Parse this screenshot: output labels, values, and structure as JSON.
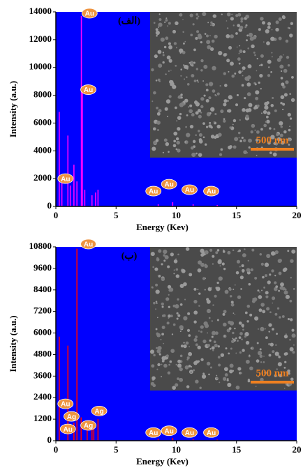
{
  "chart_data": [
    {
      "type": "stem",
      "panel_label": "(الف)",
      "xlabel": "Energy (Kev)",
      "ylabel": "Intensity (a.u.)",
      "background": "#0000ff",
      "color": "#ff00ff",
      "xlim": [
        0,
        20
      ],
      "xticks": [
        0,
        5,
        10,
        15,
        20
      ],
      "ylim": [
        0,
        14000
      ],
      "yticks": [
        0,
        2000,
        4000,
        6000,
        8000,
        10000,
        12000,
        14000
      ],
      "x": [
        0.28,
        0.5,
        1.0,
        1.2,
        1.5,
        1.75,
        2.12,
        2.2,
        2.4,
        3.0,
        3.3,
        3.5,
        8.5,
        9.7,
        11.4,
        13.4
      ],
      "values": [
        6800,
        2000,
        5100,
        1500,
        3000,
        1800,
        13700,
        8200,
        1200,
        800,
        1000,
        1200,
        150,
        300,
        150,
        100
      ],
      "annotations": [
        {
          "text": "Au",
          "x": 2.8,
          "y": 13700
        },
        {
          "text": "Au",
          "x": 2.7,
          "y": 8200
        },
        {
          "text": "Au",
          "x": 0.8,
          "y": 1800
        },
        {
          "text": "Au",
          "x": 8.1,
          "y": 900
        },
        {
          "text": "Au",
          "x": 9.4,
          "y": 1400
        },
        {
          "text": "Au",
          "x": 11.1,
          "y": 1000
        },
        {
          "text": "Au",
          "x": 12.9,
          "y": 900
        }
      ],
      "inset_scale": "500 nm"
    },
    {
      "type": "stem",
      "panel_label": "(ب)",
      "xlabel": "Energy (Kev)",
      "ylabel": "Intensity (a.u.)",
      "background": "#0000ff",
      "color": "#ff0000",
      "xlim": [
        0,
        20
      ],
      "xticks": [
        0,
        5,
        10,
        15,
        20
      ],
      "ylim": [
        0,
        10800
      ],
      "yticks": [
        0,
        1200,
        2400,
        3600,
        4800,
        6000,
        7200,
        8400,
        9600,
        10800
      ],
      "x": [
        0.28,
        1.0,
        1.5,
        1.75,
        2.1,
        2.6,
        3.0,
        3.15,
        3.5,
        8.5,
        9.7,
        11.4,
        13.4
      ],
      "values": [
        5800,
        5300,
        1000,
        10700,
        1300,
        800,
        900,
        1100,
        1200,
        100,
        150,
        80,
        60
      ],
      "annotations": [
        {
          "text": "Au",
          "x": 2.7,
          "y": 10800
        },
        {
          "text": "Au",
          "x": 0.8,
          "y": 1900
        },
        {
          "text": "Ag",
          "x": 1.3,
          "y": 1200
        },
        {
          "text": "Au",
          "x": 1.0,
          "y": 500
        },
        {
          "text": "Ag",
          "x": 2.7,
          "y": 700
        },
        {
          "text": "Ag",
          "x": 3.6,
          "y": 1500
        },
        {
          "text": "Au",
          "x": 8.1,
          "y": 300
        },
        {
          "text": "Au",
          "x": 9.4,
          "y": 400
        },
        {
          "text": "Au",
          "x": 11.1,
          "y": 300
        },
        {
          "text": "Au",
          "x": 12.9,
          "y": 300
        }
      ],
      "inset_scale": "500 nm"
    }
  ]
}
